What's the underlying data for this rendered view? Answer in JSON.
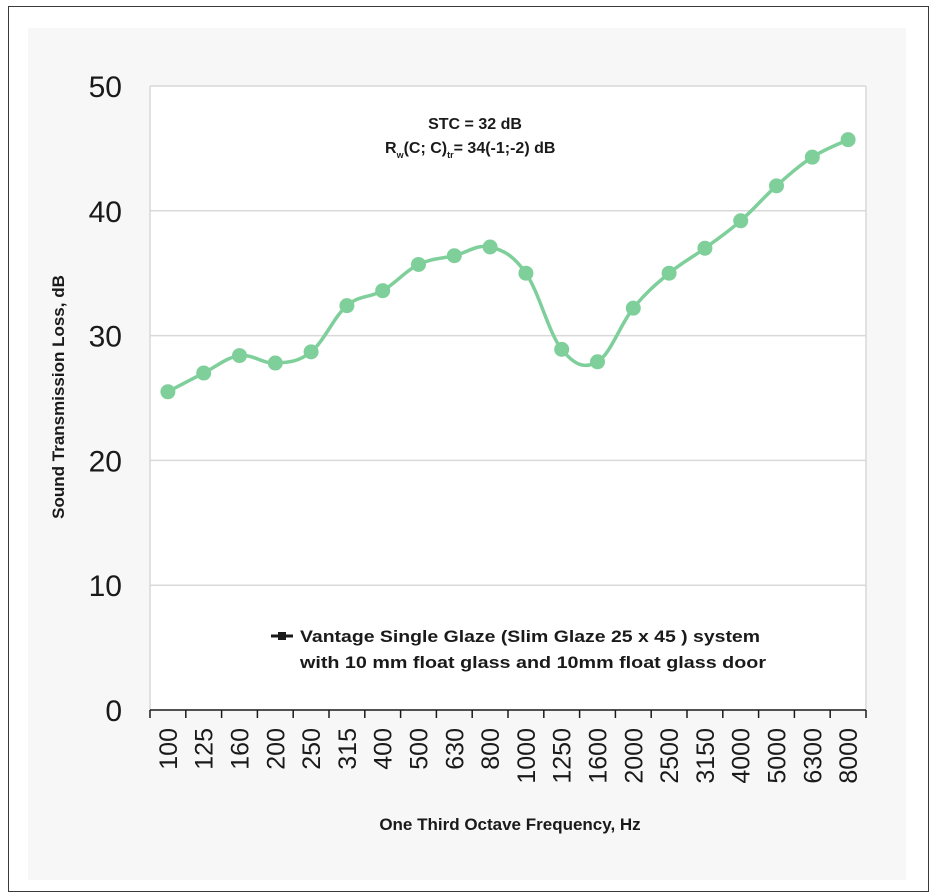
{
  "chart_data": {
    "type": "line",
    "title": "",
    "xlabel": "One Third Octave Frequency, Hz",
    "ylabel": "Sound Transmission Loss, dB",
    "ylim": [
      0,
      50
    ],
    "yticks": [
      "0",
      "10",
      "20",
      "30",
      "40",
      "50"
    ],
    "grid": true,
    "categories": [
      "100",
      "125",
      "160",
      "200",
      "250",
      "315",
      "400",
      "500",
      "630",
      "800",
      "1000",
      "1250",
      "1600",
      "2000",
      "2500",
      "3150",
      "4000",
      "5000",
      "6300",
      "8000"
    ],
    "series": [
      {
        "name_line1": "Vantage Single Glaze (Slim Glaze 25 x 45 ) system",
        "name_line2": "with 10 mm float glass and 10mm float glass door",
        "color": "#7fcf9b",
        "values": [
          25.5,
          27.0,
          28.4,
          27.8,
          28.7,
          32.4,
          33.6,
          35.7,
          36.4,
          37.1,
          35.0,
          28.9,
          27.9,
          32.2,
          35.0,
          37.0,
          39.2,
          42.0,
          44.3,
          45.7
        ]
      }
    ],
    "annotation": {
      "stc": "STC = 32 dB",
      "rw_r": "R",
      "rw_sub_w": "w",
      "rw_mid": "(C; C)",
      "rw_sub_tr": "tr",
      "rw_end": "= 34(-1;-2) dB"
    },
    "legend_position": "bottom-center"
  }
}
